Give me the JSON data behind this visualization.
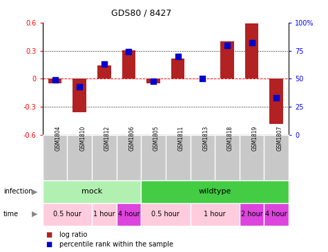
{
  "title": "GDS80 / 8427",
  "samples": [
    "GSM1804",
    "GSM1810",
    "GSM1812",
    "GSM1806",
    "GSM1805",
    "GSM1811",
    "GSM1813",
    "GSM1818",
    "GSM1819",
    "GSM1807"
  ],
  "log_ratio": [
    -0.05,
    -0.355,
    0.14,
    0.305,
    -0.05,
    0.22,
    0.0,
    0.4,
    0.59,
    -0.48
  ],
  "percentile": [
    49,
    43,
    63,
    74,
    48,
    70,
    50,
    80,
    82,
    33
  ],
  "bar_color": "#b22222",
  "dot_color": "#0000cc",
  "ylim": [
    -0.6,
    0.6
  ],
  "y2lim": [
    0,
    100
  ],
  "yticks": [
    -0.6,
    -0.3,
    0.0,
    0.3,
    0.6
  ],
  "y2ticks": [
    0,
    25,
    50,
    75,
    100
  ],
  "y2ticklabels": [
    "0",
    "25",
    "50",
    "75",
    "100%"
  ],
  "hlines": [
    -0.3,
    0.0,
    0.3
  ],
  "infection_groups": [
    {
      "label": "mock",
      "start": 0,
      "end": 4,
      "color": "#b2f0b2"
    },
    {
      "label": "wildtype",
      "start": 4,
      "end": 10,
      "color": "#44cc44"
    }
  ],
  "time_groups": [
    {
      "label": "0.5 hour",
      "start": 0,
      "end": 2,
      "color": "#ffccdd"
    },
    {
      "label": "1 hour",
      "start": 2,
      "end": 3,
      "color": "#ffccdd"
    },
    {
      "label": "4 hour",
      "start": 3,
      "end": 4,
      "color": "#dd44dd"
    },
    {
      "label": "0.5 hour",
      "start": 4,
      "end": 6,
      "color": "#ffccdd"
    },
    {
      "label": "1 hour",
      "start": 6,
      "end": 8,
      "color": "#ffccdd"
    },
    {
      "label": "2 hour",
      "start": 8,
      "end": 9,
      "color": "#dd44dd"
    },
    {
      "label": "4 hour",
      "start": 9,
      "end": 10,
      "color": "#dd44dd"
    }
  ],
  "legend_items": [
    {
      "color": "#b22222",
      "label": "log ratio"
    },
    {
      "color": "#0000cc",
      "label": "percentile rank within the sample"
    }
  ],
  "bar_width": 0.55,
  "dot_size": 30,
  "sample_bg": "#c8c8c8"
}
